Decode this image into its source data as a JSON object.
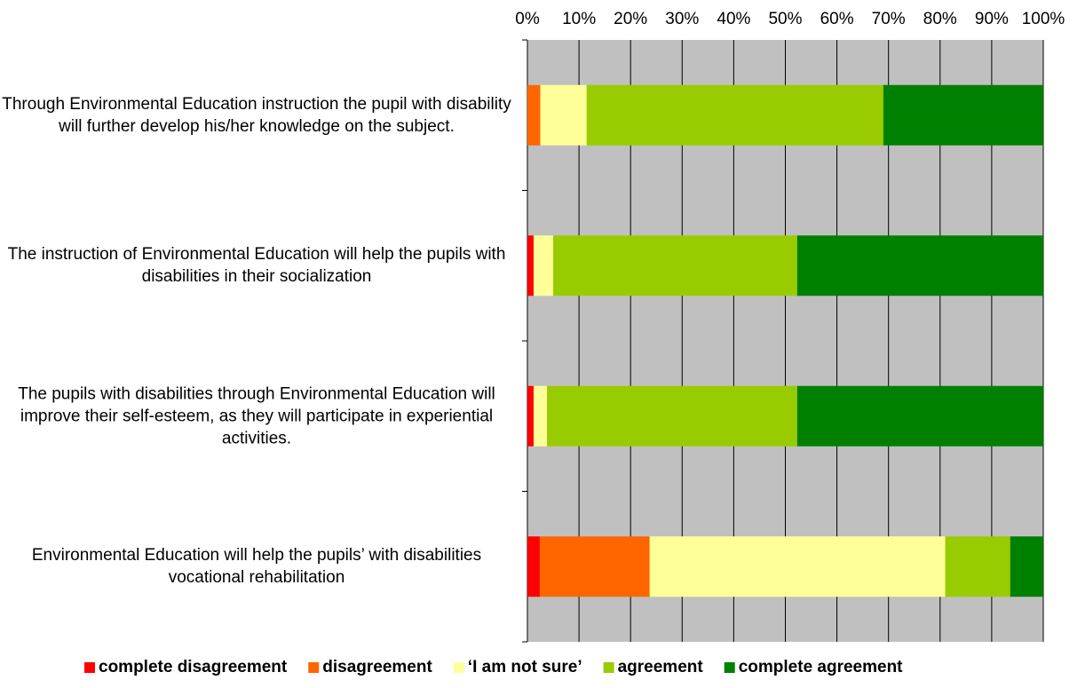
{
  "chart_data": {
    "type": "stacked_barh",
    "categories": [
      "Through Environmental Education instruction the pupil with disability will further develop his/her knowledge on the subject.",
      "The instruction of Environmental Education will help the pupils with disabilities in their socialization",
      "The pupils with disabilities through Environmental Education will improve their self-esteem, as they will participate in experiential activities.",
      "Environmental Education will help the pupils’ with disabilities vocational rehabilitation"
    ],
    "series": [
      {
        "name": "complete disagreement",
        "color": "#ff0000",
        "values": [
          0,
          1.2,
          1.2,
          2.4
        ]
      },
      {
        "name": "disagreement",
        "color": "#ff6600",
        "values": [
          2.5,
          0,
          0,
          21.3
        ]
      },
      {
        "name": "‘I am not sure’",
        "color": "#ffff99",
        "values": [
          9,
          3.8,
          2.6,
          57.3
        ]
      },
      {
        "name": "agreement",
        "color": "#99cc00",
        "values": [
          57.5,
          47.3,
          48.5,
          12.6
        ]
      },
      {
        "name": "complete agreement",
        "color": "#008000",
        "values": [
          31,
          47.7,
          47.7,
          6.4
        ]
      }
    ],
    "xlim": [
      0,
      100
    ],
    "xticks": [
      {
        "value": 0,
        "label": "0%"
      },
      {
        "value": 10,
        "label": "10%"
      },
      {
        "value": 20,
        "label": "20%"
      },
      {
        "value": 30,
        "label": "30%"
      },
      {
        "value": 40,
        "label": "40%"
      },
      {
        "value": 50,
        "label": "50%"
      },
      {
        "value": 60,
        "label": "60%"
      },
      {
        "value": 70,
        "label": "70%"
      },
      {
        "value": 80,
        "label": "80%"
      },
      {
        "value": 90,
        "label": "90%"
      },
      {
        "value": 100,
        "label": "100%"
      }
    ],
    "grid": true,
    "legend": "bottom"
  }
}
